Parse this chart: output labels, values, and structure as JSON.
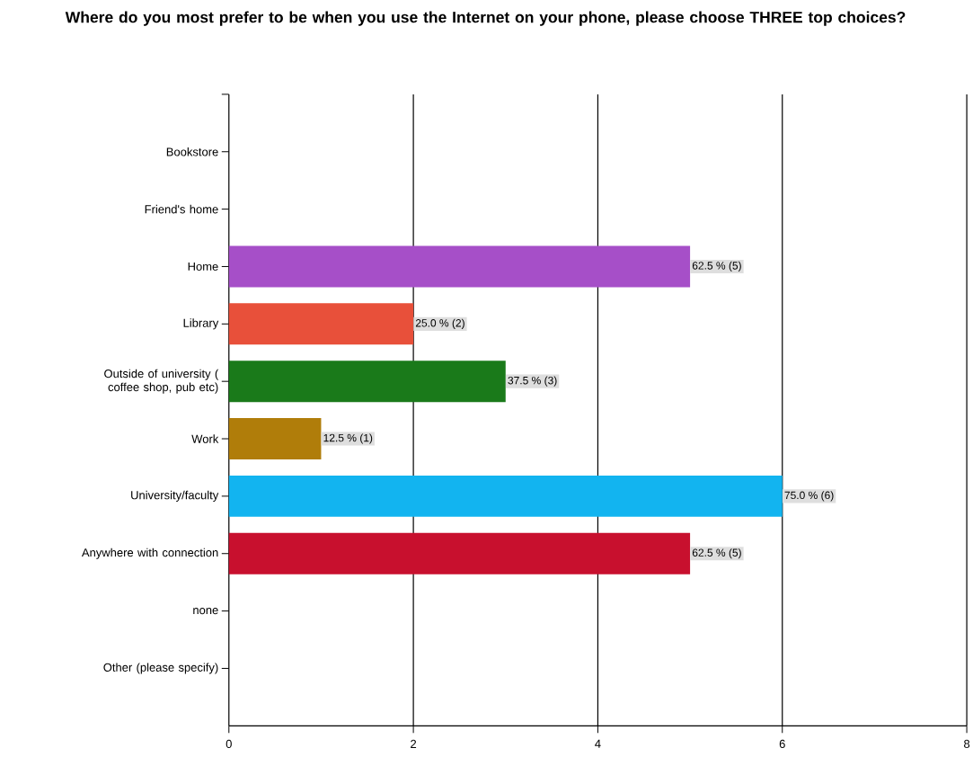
{
  "chart_data": {
    "type": "bar",
    "orientation": "horizontal",
    "title": "Where do you most prefer to be when you use the Internet on your phone, please choose THREE top choices?",
    "categories": [
      null,
      "Bookstore",
      "Friend's home",
      "Home",
      "Library",
      "Outside of university ( coffee shop, pub etc)",
      "Work",
      "University/faculty",
      "Anywhere with connection",
      "none",
      "Other (please specify)"
    ],
    "values": [
      0,
      0,
      0,
      5,
      2,
      3,
      1,
      6,
      5,
      0,
      0
    ],
    "colors": [
      "#a64fc8",
      "#a64fc8",
      "#a64fc8",
      "#a64fc8",
      "#e8503a",
      "#1a7a1a",
      "#b07d0a",
      "#12b4f0",
      "#c8102e",
      "#a64fc8",
      "#a64fc8"
    ],
    "value_labels": [
      null,
      null,
      null,
      "62.5 % (5)",
      "25.0 % (2)",
      "37.5 % (3)",
      "12.5 % (1)",
      "75.0 % (6)",
      "62.5 % (5)",
      null,
      null
    ],
    "xlim": [
      0,
      8
    ],
    "xticks": [
      0,
      2,
      4,
      6,
      8
    ],
    "grid": "x"
  }
}
